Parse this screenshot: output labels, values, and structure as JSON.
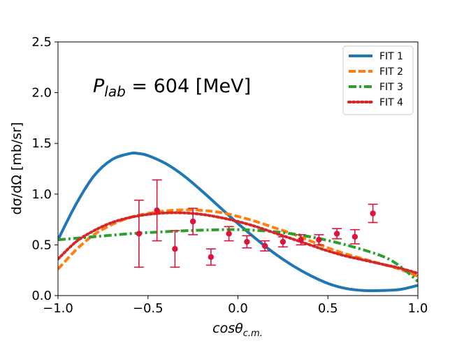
{
  "chart_data": {
    "type": "line",
    "xlabel_main": "cosθ",
    "xlabel_sub": "c.m.",
    "ylabel": "dσ/dΩ [mb/sr]",
    "annotation": {
      "prefix": "P",
      "sub": "lab",
      "suffix": " = 604 [MeV]"
    },
    "xlim": [
      -1.0,
      1.0
    ],
    "ylim": [
      0.0,
      2.5
    ],
    "xticks": [
      -1.0,
      -0.5,
      0.0,
      0.5,
      1.0
    ],
    "xtick_labels": [
      "−1.0",
      "−0.5",
      "0.0",
      "0.5",
      "1.0"
    ],
    "yticks": [
      0.0,
      0.5,
      1.0,
      1.5,
      2.0,
      2.5
    ],
    "ytick_labels": [
      "0.0",
      "0.5",
      "1.0",
      "1.5",
      "2.0",
      "2.5"
    ],
    "legend_position": "top-right",
    "series": [
      {
        "name": "FIT 1",
        "color": "#1f77b4",
        "style": "solid",
        "x": [
          -1.0,
          -0.9,
          -0.8,
          -0.7,
          -0.6,
          -0.55,
          -0.5,
          -0.4,
          -0.3,
          -0.2,
          -0.1,
          0.0,
          0.1,
          0.2,
          0.3,
          0.4,
          0.5,
          0.6,
          0.7,
          0.8,
          0.9,
          1.0
        ],
        "y": [
          0.55,
          0.9,
          1.18,
          1.34,
          1.4,
          1.4,
          1.38,
          1.3,
          1.18,
          1.03,
          0.87,
          0.71,
          0.56,
          0.42,
          0.3,
          0.2,
          0.12,
          0.07,
          0.05,
          0.05,
          0.06,
          0.1
        ]
      },
      {
        "name": "FIT 2",
        "color": "#ff7f0e",
        "style": "dashed",
        "x": [
          -1.0,
          -0.9,
          -0.8,
          -0.7,
          -0.6,
          -0.5,
          -0.4,
          -0.3,
          -0.2,
          -0.1,
          0.0,
          0.1,
          0.2,
          0.3,
          0.4,
          0.5,
          0.6,
          0.7,
          0.8,
          0.9,
          1.0
        ],
        "y": [
          0.26,
          0.45,
          0.6,
          0.7,
          0.77,
          0.81,
          0.835,
          0.845,
          0.84,
          0.82,
          0.78,
          0.73,
          0.67,
          0.61,
          0.54,
          0.47,
          0.41,
          0.36,
          0.31,
          0.26,
          0.19
        ]
      },
      {
        "name": "FIT 3",
        "color": "#2ca02c",
        "style": "dashdot",
        "x": [
          -1.0,
          -0.8,
          -0.6,
          -0.4,
          -0.2,
          0.0,
          0.2,
          0.4,
          0.6,
          0.8,
          0.9,
          1.0
        ],
        "y": [
          0.55,
          0.58,
          0.61,
          0.63,
          0.645,
          0.65,
          0.63,
          0.58,
          0.5,
          0.39,
          0.29,
          0.14
        ]
      },
      {
        "name": "FIT 4",
        "color": "#d62728",
        "style": "dotted",
        "x": [
          -1.0,
          -0.9,
          -0.8,
          -0.7,
          -0.6,
          -0.5,
          -0.4,
          -0.3,
          -0.2,
          -0.1,
          0.0,
          0.1,
          0.2,
          0.3,
          0.4,
          0.5,
          0.6,
          0.7,
          0.8,
          0.9,
          1.0
        ],
        "y": [
          0.36,
          0.53,
          0.64,
          0.72,
          0.77,
          0.8,
          0.815,
          0.815,
          0.8,
          0.77,
          0.73,
          0.68,
          0.62,
          0.56,
          0.5,
          0.44,
          0.39,
          0.35,
          0.31,
          0.27,
          0.22
        ]
      }
    ],
    "data_points": {
      "color": "#dc143c",
      "x": [
        -0.55,
        -0.45,
        -0.35,
        -0.25,
        -0.15,
        -0.05,
        0.05,
        0.15,
        0.25,
        0.35,
        0.45,
        0.55,
        0.65,
        0.75
      ],
      "y": [
        0.61,
        0.84,
        0.46,
        0.73,
        0.38,
        0.61,
        0.53,
        0.49,
        0.53,
        0.55,
        0.55,
        0.61,
        0.58,
        0.81
      ],
      "yerr": [
        0.33,
        0.3,
        0.18,
        0.13,
        0.08,
        0.07,
        0.06,
        0.05,
        0.05,
        0.05,
        0.05,
        0.05,
        0.07,
        0.09
      ]
    }
  }
}
